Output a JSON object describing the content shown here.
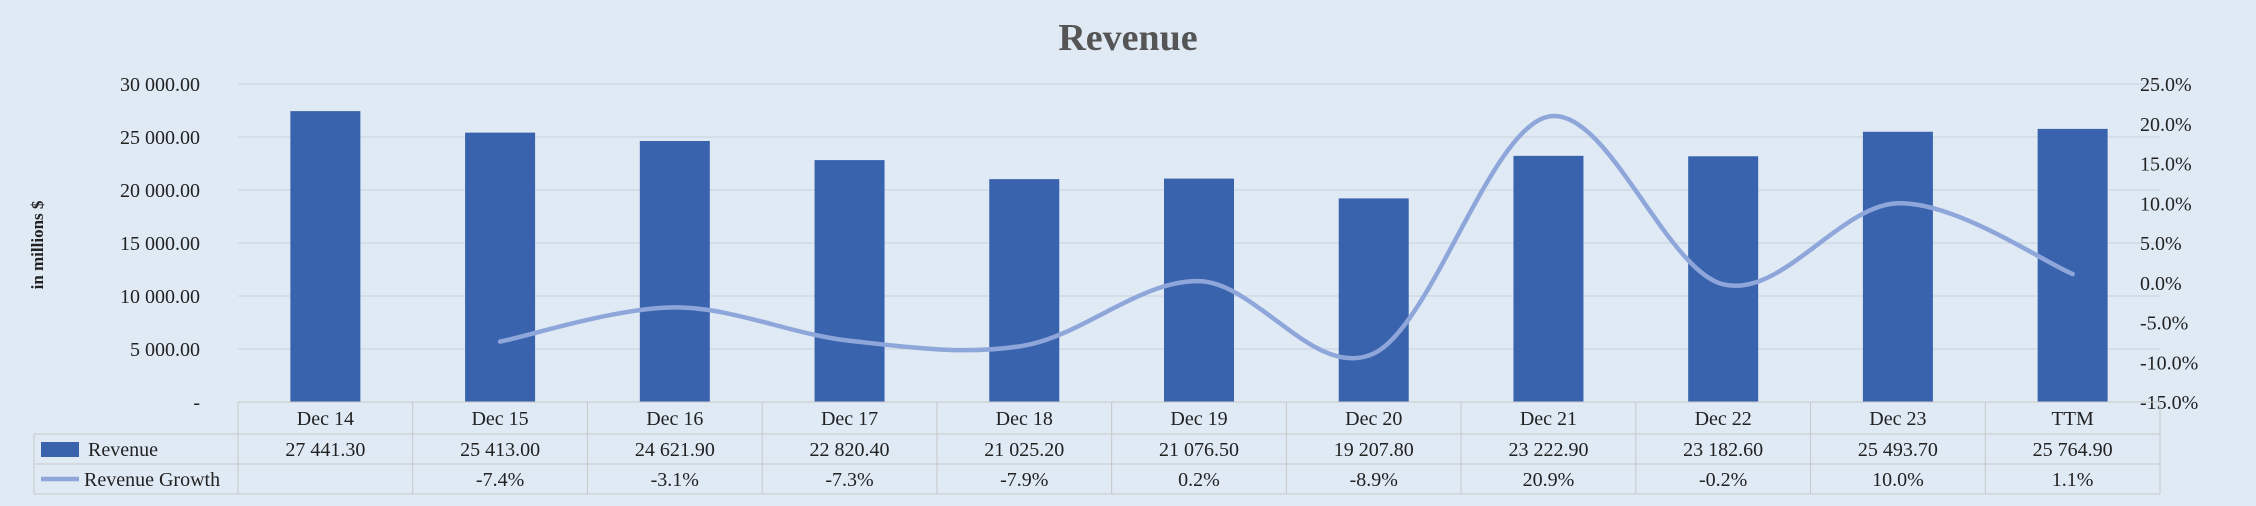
{
  "chart_data": {
    "type": "bar+line",
    "title": "Revenue",
    "ylabel": "in millions $",
    "categories": [
      "Dec 14",
      "Dec 15",
      "Dec 16",
      "Dec 17",
      "Dec 18",
      "Dec 19",
      "Dec 20",
      "Dec 21",
      "Dec 22",
      "Dec 23",
      "TTM"
    ],
    "y_left": {
      "ylim": [
        0,
        30000
      ],
      "ticks": [
        0,
        5000,
        10000,
        15000,
        20000,
        25000,
        30000
      ],
      "tick_labels": [
        "-",
        "5 000.00",
        "10 000.00",
        "15 000.00",
        "20 000.00",
        "25 000.00",
        "30 000.00"
      ]
    },
    "y_right": {
      "ylim": [
        -15,
        25
      ],
      "ticks": [
        -15,
        -10,
        -5,
        0,
        5,
        10,
        15,
        20,
        25
      ],
      "tick_labels": [
        "-15.0%",
        "-10.0%",
        "-5.0%",
        "0.0%",
        "5.0%",
        "10.0%",
        "15.0%",
        "20.0%",
        "25.0%"
      ]
    },
    "grid": true,
    "legend": "data-table",
    "series": [
      {
        "name": "Revenue",
        "type": "bar",
        "axis": "left",
        "color": "#3a63ad",
        "values": [
          27441.3,
          25413.0,
          24621.9,
          22820.4,
          21025.2,
          21076.5,
          19207.8,
          23222.9,
          23182.6,
          25493.7,
          25764.9
        ],
        "labels": [
          "27 441.30",
          "25 413.00",
          "24 621.90",
          "22 820.40",
          "21 025.20",
          "21 076.50",
          "19 207.80",
          "23 222.90",
          "23 182.60",
          "25 493.70",
          "25 764.90"
        ]
      },
      {
        "name": "Revenue Growth",
        "type": "line",
        "axis": "right",
        "color": "#8fa6da",
        "values": [
          null,
          -7.4,
          -3.1,
          -7.3,
          -7.9,
          0.2,
          -8.9,
          20.9,
          -0.2,
          10.0,
          1.1
        ],
        "labels": [
          "",
          "-7.4%",
          "-3.1%",
          "-7.3%",
          "-7.9%",
          "0.2%",
          "-8.9%",
          "20.9%",
          "-0.2%",
          "10.0%",
          "1.1%"
        ]
      }
    ]
  }
}
